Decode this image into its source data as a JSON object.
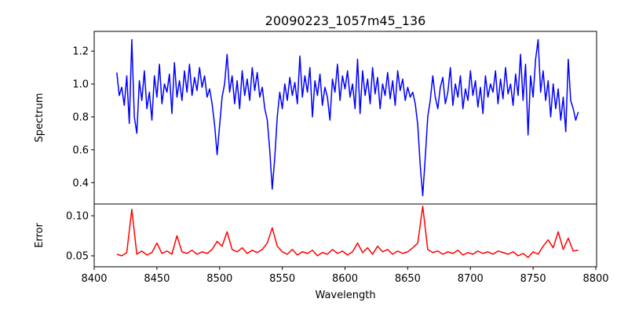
{
  "chart_data": [
    {
      "type": "line",
      "title": "20090223_1057m45_136",
      "xlabel": "",
      "ylabel": "Spectrum",
      "color": "#0000ff",
      "xlim": [
        8400,
        8805
      ],
      "ylim": [
        0.27,
        1.32
      ],
      "yticks": [
        0.4,
        0.6,
        0.8,
        1.0,
        1.2
      ],
      "ytick_labels": [
        "0.4",
        "0.6",
        "0.8",
        "1.0",
        "1.2"
      ],
      "x_start": 8418,
      "x_step": 2,
      "values": [
        1.07,
        0.93,
        0.98,
        0.87,
        1.05,
        0.76,
        1.27,
        0.8,
        0.7,
        1.02,
        0.9,
        1.08,
        0.85,
        0.95,
        0.78,
        1.05,
        0.92,
        1.12,
        0.88,
        1.0,
        0.95,
        1.06,
        0.82,
        1.13,
        0.92,
        1.02,
        0.9,
        1.08,
        0.95,
        1.12,
        0.93,
        1.04,
        0.96,
        1.1,
        0.98,
        1.05,
        0.92,
        0.97,
        0.88,
        0.75,
        0.57,
        0.75,
        0.92,
        1.0,
        1.18,
        0.95,
        1.05,
        0.88,
        1.02,
        0.85,
        1.08,
        0.93,
        1.03,
        0.9,
        1.1,
        0.96,
        1.07,
        0.92,
        0.98,
        0.85,
        0.78,
        0.6,
        0.36,
        0.55,
        0.8,
        0.95,
        0.85,
        1.0,
        0.9,
        1.04,
        0.93,
        1.01,
        0.88,
        1.17,
        0.92,
        1.05,
        0.95,
        1.1,
        0.8,
        1.02,
        0.93,
        1.06,
        0.87,
        0.98,
        0.92,
        0.78,
        1.03,
        0.95,
        1.12,
        0.9,
        1.05,
        0.97,
        1.08,
        0.92,
        1.0,
        0.85,
        1.15,
        0.82,
        1.08,
        0.93,
        1.03,
        0.88,
        1.1,
        0.94,
        1.04,
        0.85,
        1.0,
        0.93,
        1.07,
        0.91,
        1.02,
        0.87,
        1.08,
        0.96,
        1.03,
        0.9,
        0.98,
        0.92,
        0.95,
        0.88,
        0.75,
        0.5,
        0.32,
        0.55,
        0.8,
        0.9,
        1.05,
        0.92,
        0.85,
        0.98,
        1.04,
        0.88,
        0.95,
        1.1,
        0.87,
        1.0,
        0.92,
        1.05,
        0.85,
        0.97,
        0.9,
        1.08,
        0.93,
        1.02,
        0.86,
        0.98,
        0.82,
        1.05,
        0.92,
        1.0,
        0.95,
        1.08,
        0.88,
        1.03,
        0.91,
        1.1,
        0.94,
        1.0,
        0.87,
        1.06,
        0.93,
        1.18,
        0.9,
        1.12,
        0.69,
        1.05,
        0.92,
        1.15,
        1.27,
        0.95,
        1.08,
        0.9,
        1.02,
        0.8,
        1.0,
        0.85,
        0.97,
        0.78,
        0.92,
        0.71,
        1.15,
        0.9,
        0.85,
        0.78,
        0.83
      ]
    },
    {
      "type": "line",
      "title": "",
      "xlabel": "Wavelength",
      "ylabel": "Error",
      "color": "#ff0000",
      "xlim": [
        8400,
        8805
      ],
      "ylim": [
        0.0363,
        0.1147
      ],
      "xticks": [
        8400,
        8450,
        8500,
        8550,
        8600,
        8650,
        8700,
        8750,
        8800
      ],
      "xtick_labels": [
        "8400",
        "8450",
        "8500",
        "8550",
        "8600",
        "8650",
        "8700",
        "8750",
        "8800"
      ],
      "yticks": [
        0.05,
        0.1
      ],
      "ytick_labels": [
        "0.05",
        "0.10"
      ],
      "x_start": 8418,
      "x_step": 4,
      "values": [
        0.052,
        0.05,
        0.054,
        0.108,
        0.052,
        0.056,
        0.051,
        0.054,
        0.066,
        0.053,
        0.056,
        0.052,
        0.075,
        0.055,
        0.053,
        0.057,
        0.052,
        0.055,
        0.053,
        0.058,
        0.068,
        0.062,
        0.08,
        0.058,
        0.055,
        0.06,
        0.053,
        0.057,
        0.054,
        0.058,
        0.066,
        0.085,
        0.062,
        0.055,
        0.052,
        0.058,
        0.051,
        0.055,
        0.053,
        0.057,
        0.05,
        0.054,
        0.052,
        0.058,
        0.053,
        0.056,
        0.051,
        0.055,
        0.066,
        0.054,
        0.06,
        0.052,
        0.062,
        0.055,
        0.058,
        0.052,
        0.056,
        0.053,
        0.055,
        0.06,
        0.066,
        0.112,
        0.058,
        0.054,
        0.056,
        0.052,
        0.055,
        0.053,
        0.057,
        0.051,
        0.054,
        0.052,
        0.056,
        0.053,
        0.055,
        0.052,
        0.056,
        0.054,
        0.052,
        0.055,
        0.05,
        0.053,
        0.048,
        0.055,
        0.052,
        0.062,
        0.07,
        0.06,
        0.08,
        0.058,
        0.072,
        0.056,
        0.057
      ]
    }
  ]
}
